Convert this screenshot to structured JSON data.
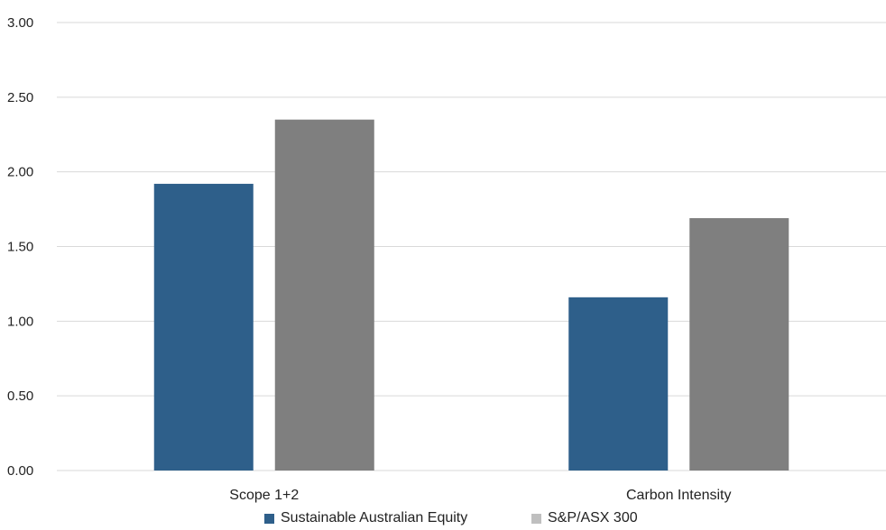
{
  "chart_data": {
    "type": "bar",
    "categories": [
      "Scope 1+2",
      "Carbon Intensity"
    ],
    "series": [
      {
        "name": "Sustainable Australian Equity",
        "values": [
          1.92,
          1.16
        ],
        "color": "#2e5f8a"
      },
      {
        "name": "S&P/ASX 300",
        "values": [
          2.35,
          1.69
        ],
        "color": "#7f7f7f"
      }
    ],
    "title": "",
    "xlabel": "",
    "ylabel": "",
    "ylim": [
      0,
      3
    ],
    "yticks": [
      "0.00",
      "0.50",
      "1.00",
      "1.50",
      "2.00",
      "2.50",
      "3.00"
    ],
    "grid": true,
    "gridColor": "#d9d9d9",
    "legendPosition": "bottom",
    "legendSwatchColors": [
      "#2e5f8a",
      "#bfbfbf"
    ]
  }
}
